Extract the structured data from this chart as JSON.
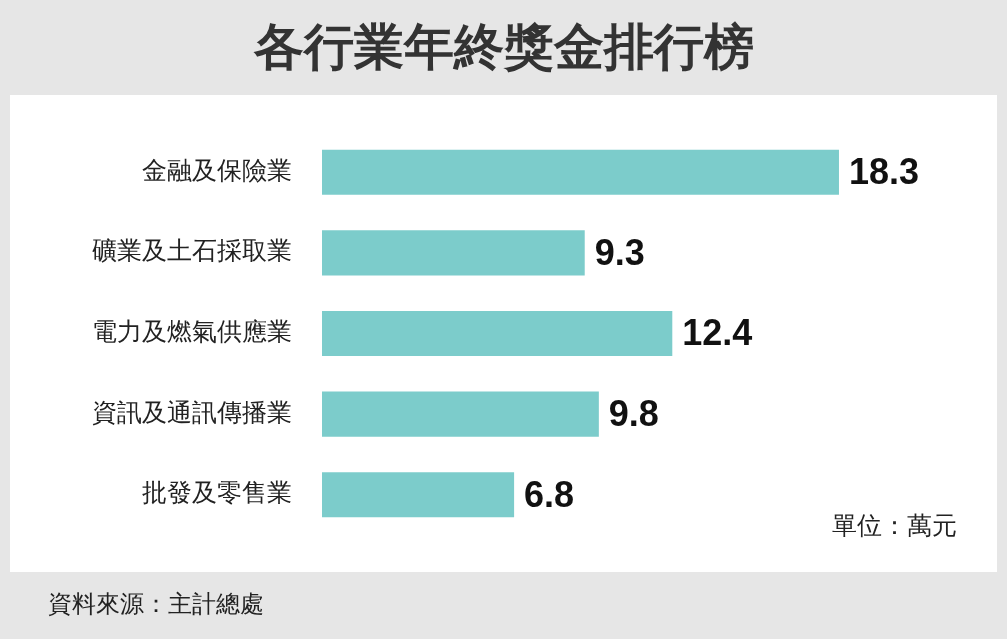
{
  "chart_data": {
    "type": "bar",
    "orientation": "horizontal",
    "title": "各行業年終獎金排行榜",
    "categories": [
      "金融及保險業",
      "礦業及土石採取業",
      "電力及燃氣供應業",
      "資訊及通訊傳播業",
      "批發及零售業"
    ],
    "values": [
      18.3,
      9.3,
      12.4,
      9.8,
      6.8
    ],
    "color": "#7ccccb",
    "data_labels": true,
    "annotations": [
      "單位：萬元",
      "資料來源：主計總處"
    ]
  }
}
